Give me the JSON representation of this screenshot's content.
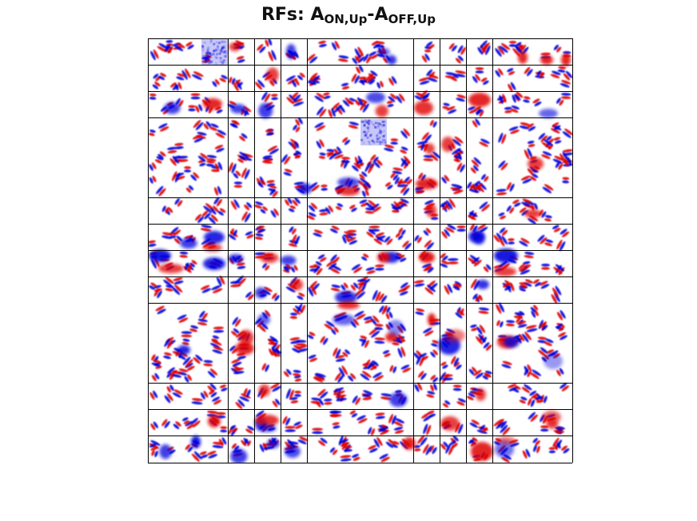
{
  "figure": {
    "title": {
      "prefix": "RFs: A",
      "sub1": "ON,Up",
      "dash": "-A",
      "sub2": "OFF,Up"
    }
  },
  "colors": {
    "on": "#e00000",
    "off": "#0000dd",
    "grid": "#000000",
    "background": "#ffffff"
  }
}
